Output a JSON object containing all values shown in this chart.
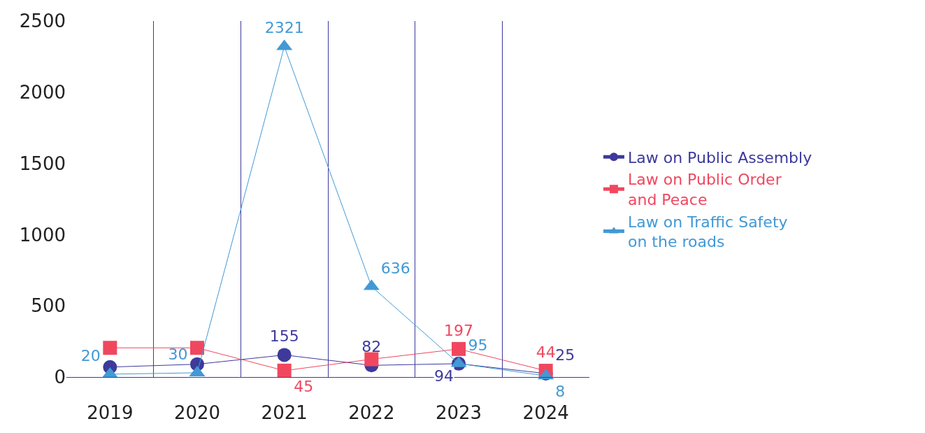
{
  "chart_data": {
    "type": "line",
    "categories": [
      "2019",
      "2020",
      "2021",
      "2022",
      "2023",
      "2024"
    ],
    "series": [
      {
        "name": "Law on Public Assembly",
        "color": "#3d3a9b",
        "marker": "circle",
        "values": [
          70,
          90,
          155,
          82,
          94,
          25
        ],
        "value_labels": [
          null,
          null,
          "155",
          "82",
          "94",
          "25"
        ]
      },
      {
        "name": "Law on Public Order and Peace",
        "color": "#f0475f",
        "marker": "square",
        "values": [
          205,
          205,
          45,
          125,
          197,
          44
        ],
        "value_labels": [
          null,
          null,
          "45",
          null,
          "197",
          "44"
        ]
      },
      {
        "name": "Law on Traffic Safety on the roads",
        "color": "#4299d5",
        "marker": "triangle",
        "values": [
          20,
          30,
          2321,
          636,
          95,
          8
        ],
        "value_labels": [
          "20",
          "30",
          "2321",
          "636",
          "95",
          "8"
        ]
      }
    ],
    "ylim": [
      0,
      2500
    ],
    "yticks": [
      0,
      500,
      1000,
      1500,
      2000,
      2500
    ],
    "grid": "x",
    "legend": "right",
    "line_style": "solid"
  }
}
